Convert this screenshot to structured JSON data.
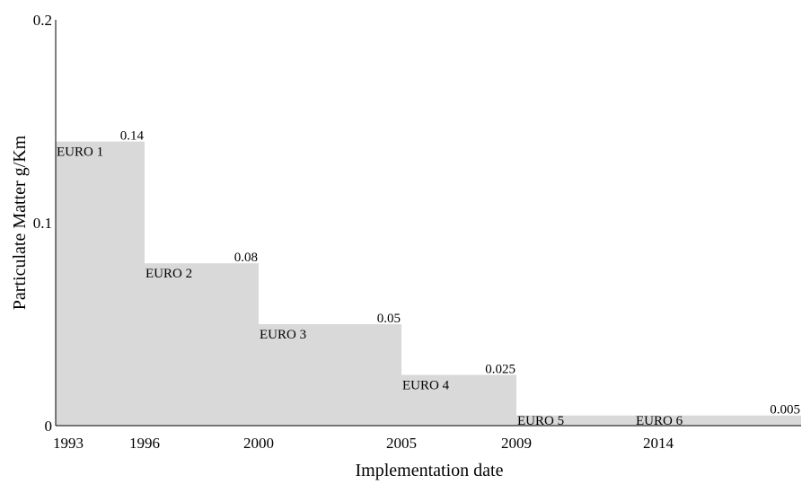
{
  "chart_data": {
    "type": "area",
    "title": "",
    "xlabel": "Implementation date",
    "ylabel": "Particulate Matter g/Km",
    "ylim": [
      0,
      0.2
    ],
    "y_ticks": [
      "0",
      "0.1",
      "0.2"
    ],
    "x_ticks": [
      "1993",
      "1996",
      "2000",
      "2005",
      "2009",
      "2014"
    ],
    "grid": false,
    "steps": [
      {
        "standard": "EURO 1",
        "start": 1993,
        "end": 1996,
        "value": 0.14,
        "value_label": "0.14"
      },
      {
        "standard": "EURO 2",
        "start": 1996,
        "end": 2000,
        "value": 0.08,
        "value_label": "0.08"
      },
      {
        "standard": "EURO 3",
        "start": 2000,
        "end": 2005,
        "value": 0.05,
        "value_label": "0.05"
      },
      {
        "standard": "EURO 4",
        "start": 2005,
        "end": 2009,
        "value": 0.025,
        "value_label": "0.025"
      },
      {
        "standard": "EURO 5",
        "start": 2009,
        "end": 2014,
        "value": 0.005,
        "value_label": ""
      },
      {
        "standard": "EURO 6",
        "start": 2014,
        "end": 2020,
        "value": 0.005,
        "value_label": "0.005"
      }
    ],
    "fill_color": "#d9d9d9"
  }
}
